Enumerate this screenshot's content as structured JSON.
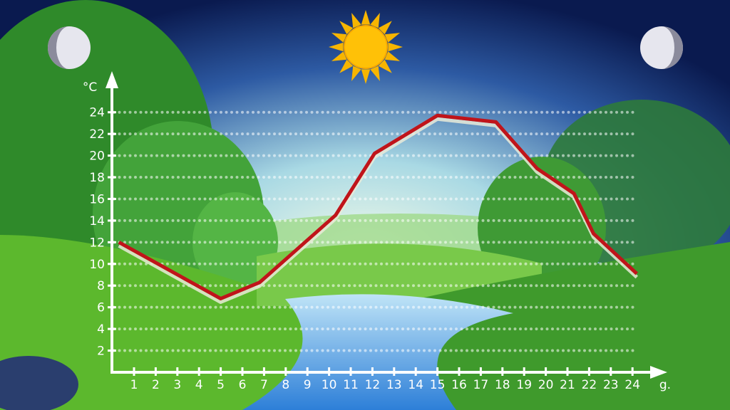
{
  "chart_data": {
    "type": "line",
    "title": "",
    "xlabel": "g.",
    "ylabel": "°C",
    "xlim": [
      0,
      24
    ],
    "ylim": [
      0,
      24
    ],
    "x_ticks": [
      1,
      2,
      3,
      4,
      5,
      6,
      7,
      8,
      9,
      10,
      11,
      12,
      13,
      14,
      15,
      16,
      17,
      18,
      19,
      20,
      21,
      22,
      23,
      24
    ],
    "y_ticks": [
      2,
      4,
      6,
      8,
      10,
      12,
      14,
      16,
      18,
      20,
      22,
      24
    ],
    "grid": "horizontal dotted",
    "series": [
      {
        "color": "#c0141a",
        "points": [
          [
            0.3,
            12
          ],
          [
            5,
            6.8
          ],
          [
            6.8,
            8.3
          ],
          [
            10.3,
            14.5
          ],
          [
            12.1,
            20.2
          ],
          [
            15,
            23.7
          ],
          [
            17.7,
            23.1
          ],
          [
            19.6,
            18.8
          ],
          [
            21.3,
            16.5
          ],
          [
            22.2,
            12.8
          ],
          [
            24.2,
            9.1
          ]
        ]
      }
    ]
  },
  "background": {
    "icons": [
      "moon-icon",
      "sun-icon",
      "moon-icon"
    ],
    "colors": {
      "sky_day": "#dff3f0",
      "sky_night": "#0c1f57",
      "grass": "#4caf2a",
      "river": "#3d8fe0",
      "sun": "#ffc107"
    }
  }
}
